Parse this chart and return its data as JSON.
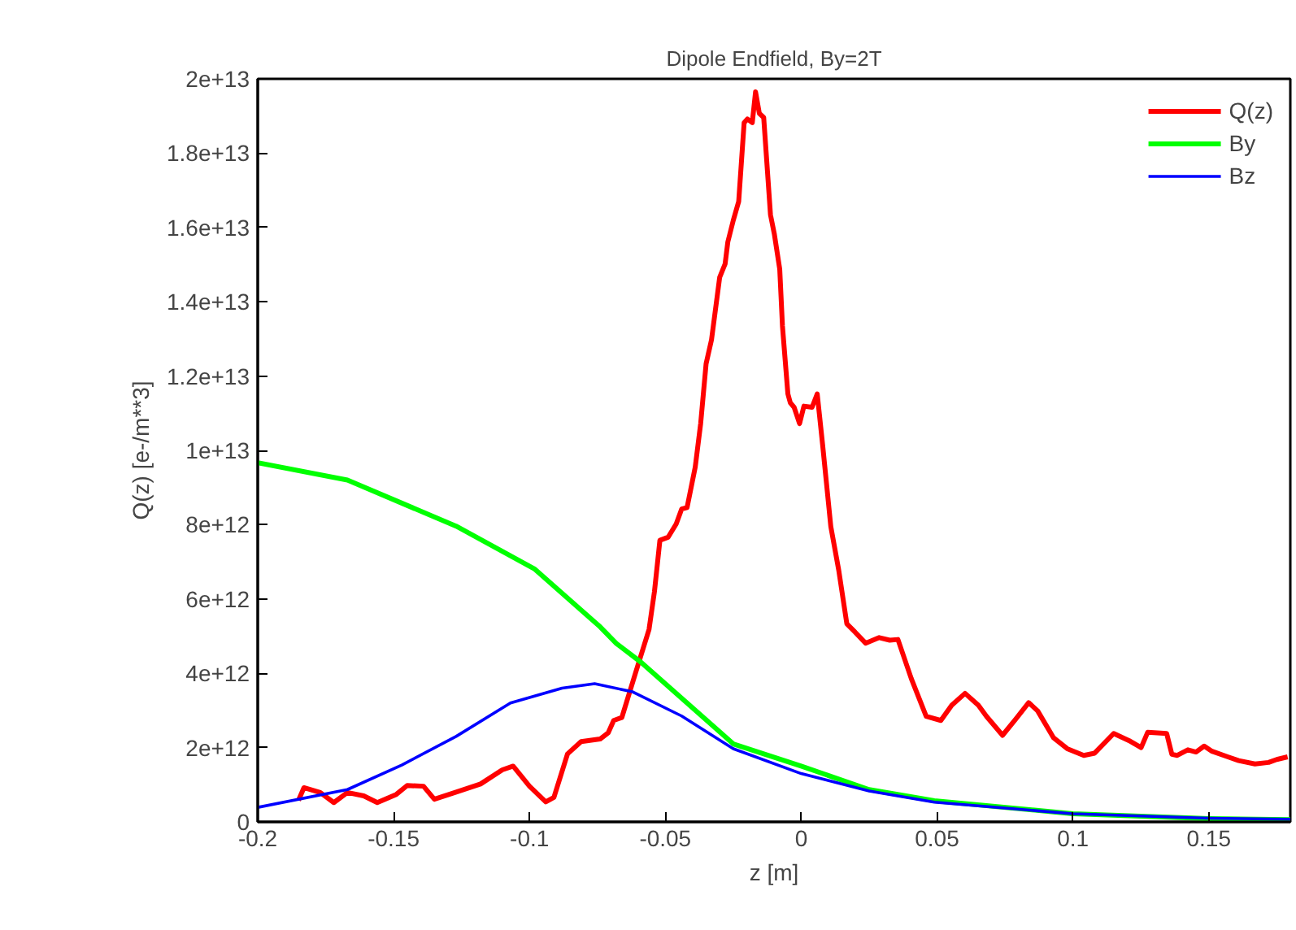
{
  "chart_data": {
    "type": "line",
    "title": "Dipole Endfield, By=2T",
    "xlabel": "z [m]",
    "ylabel": "Q(z) [e-/m**3]",
    "xlim": [
      -0.2,
      0.18
    ],
    "xticks": [
      -0.2,
      -0.15,
      -0.1,
      -0.05,
      0,
      0.05,
      0.1,
      0.15
    ],
    "ylim": [
      0,
      20000000000000.0
    ],
    "yticks": [
      0,
      {
        "value": 2000000000000.0,
        "label": "2e+12"
      },
      {
        "value": 4000000000000.0,
        "label": "4e+12"
      },
      {
        "value": 6000000000000.0,
        "label": "6e+12"
      },
      {
        "value": 8000000000000.0,
        "label": "8e+12"
      },
      {
        "value": 10000000000000.0,
        "label": "1e+13"
      },
      {
        "value": 12000000000000.0,
        "label": "1.2e+13"
      },
      {
        "value": 14000000000000.0,
        "label": "1.4e+13"
      },
      {
        "value": 16000000000000.0,
        "label": "1.6e+13"
      },
      {
        "value": 18000000000000.0,
        "label": "1.8e+13"
      },
      {
        "value": 20000000000000.0,
        "label": "2e+13"
      }
    ],
    "grid": false,
    "legend": "top right",
    "line_style": "solid",
    "marker": "none",
    "series": [
      {
        "name": "Q(z)",
        "color": "#ff0000",
        "x": [
          -0.185,
          -0.183,
          -0.177,
          -0.172,
          -0.167,
          -0.161,
          -0.156,
          -0.149,
          -0.145,
          -0.139,
          -0.135,
          -0.127,
          -0.118,
          -0.11,
          -0.106,
          -0.1,
          -0.094,
          -0.091,
          -0.086,
          -0.081,
          -0.074,
          -0.071,
          -0.069,
          -0.066,
          -0.061,
          -0.056,
          -0.054,
          -0.052,
          -0.049,
          -0.046,
          -0.044,
          -0.042,
          -0.039,
          -0.037,
          -0.035,
          -0.033,
          -0.03,
          -0.028,
          -0.027,
          -0.025,
          -0.023,
          -0.021,
          -0.0198,
          -0.018,
          -0.0168,
          -0.0154,
          -0.0138,
          -0.0113,
          -0.0099,
          -0.0079,
          -0.0069,
          -0.0049,
          -0.004,
          -0.0026,
          -0.0006,
          0.001,
          0.004,
          0.0059,
          0.0079,
          0.0109,
          0.0138,
          0.0168,
          0.0198,
          0.0237,
          0.0287,
          0.0326,
          0.0356,
          0.0405,
          0.046,
          0.0514,
          0.0554,
          0.0603,
          0.0652,
          0.0682,
          0.0741,
          0.079,
          0.0837,
          0.087,
          0.0929,
          0.0979,
          0.104,
          0.108,
          0.115,
          0.1206,
          0.1251,
          0.1275,
          0.1345,
          0.1364,
          0.1384,
          0.1423,
          0.1453,
          0.1483,
          0.1512,
          0.157,
          0.161,
          0.167,
          0.172,
          0.175,
          0.179
        ],
        "values": [
          580000000000.0,
          920000000000.0,
          790000000000.0,
          520000000000.0,
          790000000000.0,
          700000000000.0,
          520000000000.0,
          740000000000.0,
          980000000000.0,
          960000000000.0,
          610000000000.0,
          800000000000.0,
          1020000000000.0,
          1400000000000.0,
          1500000000000.0,
          960000000000.0,
          540000000000.0,
          660000000000.0,
          1830000000000.0,
          2160000000000.0,
          2230000000000.0,
          2400000000000.0,
          2730000000000.0,
          2810000000000.0,
          4000000000000.0,
          5180000000000.0,
          6200000000000.0,
          7580000000000.0,
          7660000000000.0,
          8020000000000.0,
          8420000000000.0,
          8460000000000.0,
          9550000000000.0,
          10720000000000.0,
          12330000000000.0,
          12980000000000.0,
          14660000000000.0,
          15020000000000.0,
          15610000000000.0,
          16190000000000.0,
          16700000000000.0,
          18820000000000.0,
          18920000000000.0,
          18820000000000.0,
          19650000000000.0,
          19070000000000.0,
          18960000000000.0,
          16340000000000.0,
          15830000000000.0,
          14880000000000.0,
          13350000000000.0,
          11520000000000.0,
          11280000000000.0,
          11160000000000.0,
          10720000000000.0,
          11190000000000.0,
          11160000000000.0,
          11520000000000.0,
          10140000000000.0,
          7950000000000.0,
          6780000000000.0,
          5330000000000.0,
          5110000000000.0,
          4810000000000.0,
          4960000000000.0,
          4890000000000.0,
          4910000000000.0,
          3860000000000.0,
          2840000000000.0,
          2730000000000.0,
          3140000000000.0,
          3460000000000.0,
          3140000000000.0,
          2840000000000.0,
          2330000000000.0,
          2770000000000.0,
          3210000000000.0,
          2990000000000.0,
          2260000000000.0,
          1970000000000.0,
          1790000000000.0,
          1850000000000.0,
          2380000000000.0,
          2190000000000.0,
          2000000000000.0,
          2410000000000.0,
          2380000000000.0,
          1820000000000.0,
          1790000000000.0,
          1940000000000.0,
          1880000000000.0,
          2040000000000.0,
          1900000000000.0,
          1750000000000.0,
          1650000000000.0,
          1560000000000.0,
          1600000000000.0,
          1680000000000.0,
          1750000000000.0
        ]
      },
      {
        "name": "By",
        "color": "#00ff00",
        "x": [
          -0.2,
          -0.167,
          -0.127,
          -0.098,
          -0.074,
          -0.068,
          -0.059,
          -0.025,
          0,
          0.025,
          0.049,
          0.1,
          0.15,
          0.18
        ],
        "values": [
          9670000000000.0,
          9200000000000.0,
          7960000000000.0,
          6800000000000.0,
          5250000000000.0,
          4800000000000.0,
          4300000000000.0,
          2100000000000.0,
          1500000000000.0,
          870000000000.0,
          570000000000.0,
          220000000000.0,
          90000000000.0,
          60000000000.0
        ]
      },
      {
        "name": "Bz",
        "color": "#0000ff",
        "x": [
          -0.2,
          -0.167,
          -0.147,
          -0.127,
          -0.107,
          -0.088,
          -0.076,
          -0.062,
          -0.044,
          -0.025,
          0,
          0.025,
          0.049,
          0.1,
          0.15,
          0.18
        ],
        "values": [
          390000000000.0,
          870000000000.0,
          1530000000000.0,
          2300000000000.0,
          3200000000000.0,
          3600000000000.0,
          3720000000000.0,
          3500000000000.0,
          2850000000000.0,
          1970000000000.0,
          1300000000000.0,
          830000000000.0,
          530000000000.0,
          220000000000.0,
          100000000000.0,
          70000000000.0
        ]
      }
    ]
  }
}
